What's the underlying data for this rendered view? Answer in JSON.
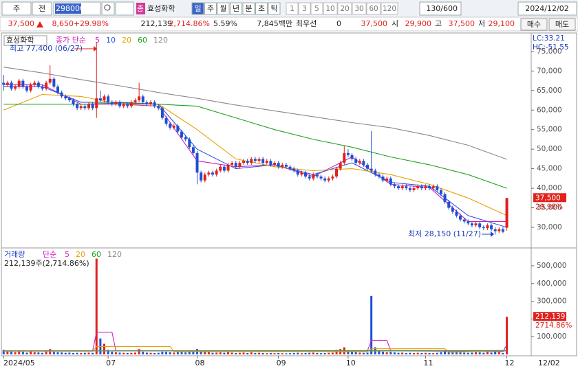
{
  "toolbar": {
    "market": "주",
    "prefix": "전",
    "code": "298000",
    "badge": "종",
    "name": "효성화학",
    "periods": [
      "일",
      "주",
      "월",
      "년",
      "분",
      "초",
      "틱"
    ],
    "intervals": [
      "1",
      "3",
      "5",
      "10",
      "20",
      "30",
      "60",
      "120"
    ],
    "count": "130/600",
    "date": "2024/12/02"
  },
  "quote": {
    "price": "37,500",
    "change": "8,650",
    "change_pct": "+29.98%",
    "volume": "212,139",
    "volume_pct": "2,714.86%",
    "turnover": "5.59%",
    "amount": "7,845백만",
    "priority_label": "최우선",
    "priority": "0",
    "ask": "37,500",
    "open_label": "시",
    "open": "29,900",
    "high_label": "고",
    "high": "37,500",
    "low_label": "저",
    "low": "29,100",
    "buy": "매수",
    "sell": "매도"
  },
  "chart_data": [
    {
      "type": "candlestick",
      "title": "효성화학",
      "legend_label": "종가 단순",
      "up_color": "#e0211c",
      "down_color": "#1f4fd1",
      "xlim": [
        -0.4,
        136.3
      ],
      "ylim": [
        25250,
        78500
      ],
      "yticks": [
        {
          "value": 30000,
          "label": "30,000"
        },
        {
          "value": 35000,
          "label": "35,000"
        },
        {
          "value": 40000,
          "label": "40,000"
        },
        {
          "value": 45000,
          "label": "45,000"
        },
        {
          "value": 50000,
          "label": "50,000"
        },
        {
          "value": 55000,
          "label": "55,000"
        },
        {
          "value": 60000,
          "label": "60,000"
        },
        {
          "value": 65000,
          "label": "65,000"
        },
        {
          "value": 70000,
          "label": "70,000"
        },
        {
          "value": 75000,
          "label": "75,000"
        }
      ],
      "open": [
        67000,
        66500,
        67000,
        65500,
        66000,
        67500,
        66000,
        65000,
        66500,
        67000,
        66000,
        65500,
        67000,
        68000,
        66000,
        64500,
        63500,
        63000,
        62500,
        61500,
        60500,
        61000,
        60500,
        61500,
        60500,
        63000,
        62500,
        63500,
        62000,
        61500,
        62000,
        61000,
        61500,
        61000,
        62000,
        62500,
        63500,
        62000,
        61500,
        62000,
        61000,
        60500,
        58000,
        56500,
        55500,
        56000,
        54500,
        53000,
        52500,
        50500,
        49000,
        44000,
        42000,
        43500,
        44000,
        43500,
        44500,
        45500,
        44500,
        46000,
        46500,
        45500,
        46500,
        47000,
        46500,
        47500,
        47000,
        47500,
        46500,
        47000,
        46000,
        46500,
        45500,
        46000,
        45500,
        45000,
        44500,
        43500,
        44000,
        43000,
        42500,
        43500,
        43000,
        42500,
        42000,
        42500,
        43000,
        45000,
        46500,
        49000,
        48500,
        47500,
        46500,
        47000,
        46000,
        45000,
        44500,
        43500,
        43000,
        42000,
        42500,
        41000,
        40500,
        40000,
        40500,
        40000,
        39500,
        40000,
        40500,
        40000,
        40500,
        40000,
        40500,
        39500,
        38500,
        36500,
        35000,
        34000,
        33000,
        32000,
        31500,
        31000,
        30500,
        31000,
        30000,
        29800,
        30500,
        29500,
        29000,
        29500,
        29900
      ],
      "high": [
        69000,
        67500,
        67500,
        66500,
        68000,
        68000,
        66500,
        67000,
        67500,
        67500,
        66500,
        67500,
        71500,
        68500,
        66500,
        65000,
        64000,
        63500,
        63000,
        62000,
        61500,
        61500,
        62000,
        62000,
        77400,
        65000,
        64000,
        64000,
        62500,
        62500,
        62500,
        62000,
        62000,
        62500,
        63000,
        67000,
        64000,
        62500,
        62500,
        62500,
        61500,
        61000,
        58500,
        57000,
        56500,
        56500,
        55000,
        53500,
        53000,
        51000,
        49500,
        44500,
        44000,
        44500,
        44500,
        45000,
        46000,
        46000,
        46500,
        47000,
        47000,
        47000,
        47500,
        47500,
        48000,
        48000,
        48000,
        48000,
        47500,
        47500,
        47000,
        47000,
        46500,
        46500,
        46000,
        45500,
        45000,
        44500,
        44500,
        43500,
        44000,
        44000,
        43500,
        43000,
        43000,
        43500,
        45500,
        47000,
        51000,
        50000,
        49000,
        48000,
        47500,
        47500,
        46500,
        54600,
        45000,
        44000,
        43500,
        43000,
        43000,
        41500,
        41000,
        41000,
        41000,
        40500,
        40500,
        41000,
        41000,
        41000,
        41000,
        41000,
        41000,
        40000,
        39000,
        37000,
        35500,
        34500,
        33500,
        32500,
        32000,
        31500,
        31500,
        31500,
        30500,
        31000,
        31000,
        30000,
        30000,
        30000,
        37500
      ],
      "low": [
        65000,
        66000,
        65000,
        65000,
        65500,
        65500,
        64500,
        64500,
        66000,
        65500,
        65000,
        65000,
        66500,
        65500,
        64000,
        63000,
        62500,
        62000,
        61000,
        60000,
        60000,
        60000,
        60000,
        60000,
        58000,
        62000,
        62000,
        61500,
        61000,
        61000,
        60500,
        60500,
        60500,
        60500,
        61500,
        62000,
        61500,
        61000,
        61000,
        60500,
        60000,
        57500,
        56000,
        55000,
        55000,
        54000,
        52500,
        52000,
        50000,
        48500,
        41000,
        41500,
        41500,
        43000,
        43000,
        43000,
        44000,
        44000,
        44000,
        45500,
        45000,
        45000,
        46000,
        46000,
        46000,
        46500,
        46500,
        46000,
        46000,
        45500,
        45500,
        45000,
        45000,
        45000,
        44500,
        44000,
        43000,
        43000,
        42500,
        42000,
        42000,
        42500,
        42000,
        41500,
        41500,
        42000,
        42500,
        44500,
        46000,
        48000,
        47000,
        46000,
        46000,
        45500,
        44500,
        44000,
        43000,
        42500,
        41500,
        41500,
        40500,
        40000,
        39500,
        39500,
        39500,
        39000,
        39000,
        39500,
        39500,
        39500,
        39500,
        39500,
        39000,
        38000,
        36000,
        34500,
        33500,
        32500,
        31500,
        31000,
        30500,
        30000,
        30000,
        29500,
        29300,
        29300,
        29000,
        28150,
        28500,
        28500,
        29100
      ],
      "close": [
        66500,
        67000,
        65500,
        66000,
        67500,
        66000,
        65000,
        66500,
        67000,
        66000,
        65500,
        67000,
        68000,
        66000,
        64500,
        63500,
        63000,
        62500,
        61500,
        60500,
        61000,
        60500,
        61500,
        60500,
        63000,
        62500,
        63500,
        62000,
        61500,
        62000,
        61000,
        61500,
        61000,
        62000,
        62500,
        63500,
        62000,
        61500,
        62000,
        61000,
        60500,
        58000,
        56500,
        55500,
        56000,
        54500,
        53000,
        52500,
        50500,
        49000,
        44000,
        42000,
        43500,
        44000,
        43500,
        44500,
        45500,
        44500,
        46000,
        46500,
        45500,
        46500,
        47000,
        46500,
        47500,
        47000,
        47500,
        46500,
        47000,
        46000,
        46500,
        45500,
        46000,
        45500,
        45000,
        44500,
        43500,
        44000,
        43000,
        42500,
        43500,
        43000,
        42500,
        42000,
        42500,
        43000,
        45000,
        46500,
        49000,
        48500,
        47500,
        46500,
        47000,
        46000,
        45000,
        44500,
        43500,
        43000,
        42000,
        42500,
        41000,
        40500,
        40000,
        40500,
        40000,
        39500,
        40000,
        40500,
        40000,
        40500,
        40000,
        40500,
        39500,
        38500,
        36500,
        35000,
        34000,
        33000,
        32000,
        31500,
        31000,
        30500,
        31000,
        30000,
        29800,
        30500,
        29500,
        29000,
        29500,
        28850,
        37500
      ],
      "series": [
        {
          "name": "5",
          "color": "#d020c0",
          "x": [
            0,
            10,
            20,
            30,
            40,
            50,
            60,
            70,
            80,
            90,
            100,
            110,
            120,
            130
          ],
          "values": [
            66500,
            66500,
            61500,
            61500,
            61000,
            47000,
            45500,
            46000,
            43000,
            48000,
            41000,
            40200,
            31500,
            31500
          ]
        },
        {
          "name": "10",
          "color": "#3050e0",
          "x": [
            0,
            10,
            20,
            30,
            40,
            50,
            60,
            70,
            80,
            90,
            100,
            110,
            120,
            130
          ],
          "values": [
            66000,
            66000,
            62000,
            62000,
            61500,
            50000,
            45000,
            46000,
            43500,
            46500,
            41500,
            40500,
            33000,
            30000
          ]
        },
        {
          "name": "20",
          "color": "#e8a000",
          "x": [
            0,
            10,
            20,
            30,
            40,
            50,
            60,
            70,
            80,
            90,
            100,
            110,
            120,
            130
          ],
          "values": [
            60000,
            64000,
            63500,
            61500,
            61500,
            55000,
            47500,
            45500,
            44500,
            45000,
            43500,
            41000,
            37500,
            33000
          ]
        },
        {
          "name": "60",
          "color": "#20a020",
          "x": [
            0,
            10,
            20,
            30,
            40,
            50,
            60,
            70,
            80,
            90,
            100,
            110,
            120,
            130
          ],
          "values": [
            61500,
            61500,
            61500,
            61800,
            61500,
            61000,
            58000,
            55000,
            52500,
            50500,
            48000,
            46000,
            43500,
            40000
          ]
        },
        {
          "name": "120",
          "color": "#888888",
          "x": [
            0,
            10,
            20,
            30,
            40,
            50,
            60,
            70,
            80,
            90,
            100,
            110,
            120,
            130
          ],
          "values": [
            71000,
            69500,
            67800,
            66200,
            64500,
            63000,
            61300,
            59800,
            58300,
            56800,
            55500,
            53500,
            51000,
            47400
          ]
        }
      ],
      "xticks": [
        {
          "value": 0,
          "label": "2024/05"
        },
        {
          "value": 27,
          "label": "07"
        },
        {
          "value": 50,
          "label": "08"
        },
        {
          "value": 71,
          "label": "09"
        },
        {
          "value": 89,
          "label": "10"
        },
        {
          "value": 109,
          "label": "11"
        },
        {
          "value": 130,
          "label": "12"
        }
      ],
      "x_end_label": "12/02",
      "annotations": {
        "high": "최고 77,400 (06/27)",
        "low": "최저 28,150 (11/27)",
        "lc": "LC:33.21",
        "hc": "HC:-51.55",
        "last_price": "37,500",
        "last_change": "29.98%"
      }
    },
    {
      "type": "bar",
      "title": "거래량",
      "legend_label": "단순",
      "value_note": "212,139주(2,714.86%)",
      "last_label": "212,139",
      "last_pct": "2714.86%",
      "ylim": [
        0,
        585000
      ],
      "yticks": [
        {
          "value": 100000,
          "label": "100,000"
        },
        {
          "value": 200000,
          "label": "200,000"
        },
        {
          "value": 300000,
          "label": "300,000"
        },
        {
          "value": 400000,
          "label": "400,000"
        },
        {
          "value": 500000,
          "label": "500,000"
        }
      ],
      "values": [
        25000,
        18000,
        15000,
        12000,
        20000,
        14000,
        10000,
        16000,
        12000,
        11000,
        9000,
        15000,
        30000,
        14000,
        12000,
        11000,
        9000,
        10000,
        8000,
        9000,
        8000,
        9000,
        10000,
        9000,
        540000,
        90000,
        60000,
        25000,
        15000,
        12000,
        10000,
        9000,
        8000,
        9000,
        10000,
        30000,
        15000,
        10000,
        9000,
        8000,
        9000,
        15000,
        14000,
        12000,
        10000,
        12000,
        13000,
        11000,
        15000,
        18000,
        30000,
        22000,
        18000,
        12000,
        9000,
        10000,
        11000,
        9000,
        12000,
        10000,
        8000,
        9000,
        10000,
        8000,
        11000,
        8000,
        9000,
        8000,
        7000,
        8000,
        7000,
        8000,
        7000,
        6000,
        7000,
        8000,
        9000,
        7000,
        8000,
        9000,
        10000,
        8000,
        7000,
        8000,
        9000,
        10000,
        25000,
        30000,
        40000,
        20000,
        15000,
        12000,
        10000,
        9000,
        10000,
        330000,
        40000,
        20000,
        15000,
        12000,
        14000,
        11000,
        9000,
        10000,
        8000,
        9000,
        8000,
        9000,
        8000,
        9000,
        8000,
        7000,
        9000,
        12000,
        18000,
        15000,
        12000,
        14000,
        11000,
        10000,
        9000,
        10000,
        12000,
        11000,
        9000,
        14000,
        10000,
        15000,
        12000,
        8000,
        212139
      ],
      "series": [
        {
          "name": "5",
          "color": "#d020c0",
          "x": [
            0,
            23,
            24,
            28,
            29,
            94,
            95,
            99,
            100,
            129,
            130
          ],
          "values": [
            20000,
            20000,
            125000,
            125000,
            20000,
            20000,
            80000,
            80000,
            20000,
            15000,
            55000
          ]
        },
        {
          "name": "20",
          "color": "#e8a000",
          "x": [
            0,
            23,
            24,
            43,
            44,
            94,
            95,
            114,
            115,
            130
          ],
          "values": [
            18000,
            18000,
            45000,
            45000,
            15000,
            15000,
            32000,
            32000,
            12000,
            20000
          ]
        },
        {
          "name": "60",
          "color": "#20a020",
          "x": [
            0,
            130
          ],
          "values": [
            20000,
            22000
          ]
        },
        {
          "name": "120",
          "color": "#888888",
          "x": [
            0,
            130
          ],
          "values": [
            19000,
            19000
          ]
        }
      ]
    }
  ]
}
